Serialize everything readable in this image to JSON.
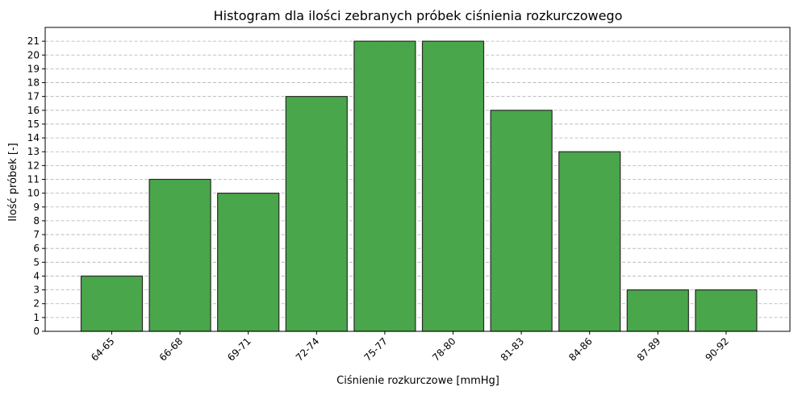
{
  "chart_data": {
    "type": "bar",
    "title": "Histogram dla ilości zebranych próbek ciśnienia rozkurczowego",
    "xlabel": "Ciśnienie rozkurczowe [mmHg]",
    "ylabel": "Ilość próbek [-]",
    "categories": [
      "64-65",
      "66-68",
      "69-71",
      "72-74",
      "75-77",
      "78-80",
      "81-83",
      "84-86",
      "87-89",
      "90-92"
    ],
    "values": [
      4,
      11,
      10,
      17,
      21,
      21,
      16,
      13,
      3,
      3
    ],
    "ylim": [
      0,
      22
    ],
    "yticks": [
      0,
      1,
      2,
      3,
      4,
      5,
      6,
      7,
      8,
      9,
      10,
      11,
      12,
      13,
      14,
      15,
      16,
      17,
      18,
      19,
      20,
      21
    ],
    "grid": "y-dashed",
    "bar_color": "#4aa64a",
    "bar_edge_color": "#2a2a2a",
    "x_tick_rotation": "45-degrees"
  }
}
